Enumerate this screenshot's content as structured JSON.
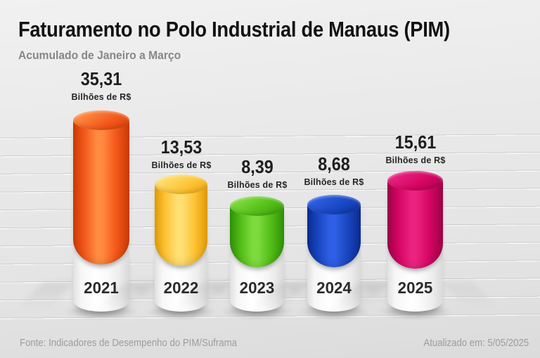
{
  "header": {
    "title": "Faturamento no Polo Industrial de Manaus (PIM)",
    "subtitle": "Acumulado de Janeiro a Março"
  },
  "unit_label": "Bilhões de R$",
  "bars": [
    {
      "year": "2021",
      "value": "35,31",
      "color": "#f4581b"
    },
    {
      "year": "2022",
      "value": "13,53",
      "color": "#fdc234"
    },
    {
      "year": "2023",
      "value": "8,39",
      "color": "#53bd17"
    },
    {
      "year": "2024",
      "value": "8,68",
      "color": "#1846c0"
    },
    {
      "year": "2025",
      "value": "15,61",
      "color": "#d40563"
    }
  ],
  "footer": {
    "source": "Fonte: Indicadores de Desempenho do PIM/Suframa",
    "updated": "Atualizado em: 5/05/2025"
  },
  "chart_data": {
    "type": "bar",
    "title": "Faturamento no Polo Industrial de Manaus (PIM)",
    "subtitle": "Acumulado de Janeiro a Março",
    "categories": [
      "2021",
      "2022",
      "2023",
      "2024",
      "2025"
    ],
    "values": [
      35.31,
      13.53,
      8.39,
      8.68,
      15.61
    ],
    "ylabel": "Bilhões de R$",
    "xlabel": "",
    "series_colors": [
      "#f4581b",
      "#fdc234",
      "#53bd17",
      "#1846c0",
      "#d40563"
    ],
    "legend": "none",
    "grid": "horizontal lines",
    "style": "3D cylinder infographic on white pedestals, bar heights not strictly proportional",
    "source": "Fonte: Indicadores de Desempenho do PIM/Suframa",
    "updated": "Atualizado em: 5/05/2025"
  }
}
